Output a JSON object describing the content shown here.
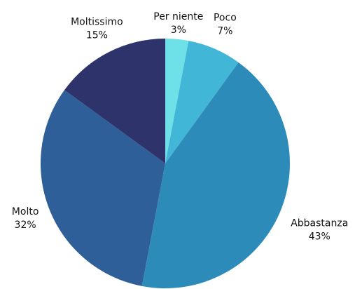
{
  "chart_data": {
    "type": "pie",
    "categories": [
      "Per niente",
      "Poco",
      "Abbastanza",
      "Molto",
      "Moltissimo"
    ],
    "values": [
      3,
      7,
      43,
      32,
      15
    ],
    "value_labels": [
      "3%",
      "7%",
      "43%",
      "32%",
      "15%"
    ],
    "colors": [
      "#6ee0e8",
      "#42b6d6",
      "#2d8bba",
      "#2e5f98",
      "#2e346b"
    ]
  }
}
